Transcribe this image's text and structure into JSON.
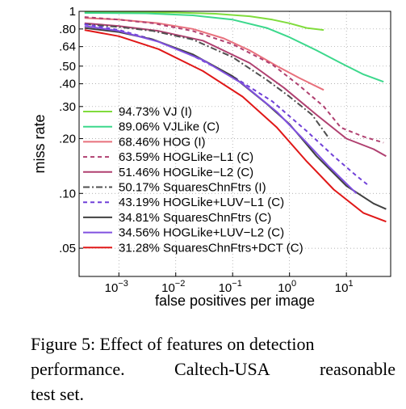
{
  "chart_data": {
    "type": "line",
    "xlabel": "false positives per image",
    "ylabel": "miss rate",
    "x_scale": "log",
    "y_scale": "log",
    "xlim": [
      0.0002,
      60
    ],
    "ylim": [
      0.035,
      1
    ],
    "x_ticks": [
      {
        "value": 0.001,
        "base": "10",
        "exp": "−3"
      },
      {
        "value": 0.01,
        "base": "10",
        "exp": "−2"
      },
      {
        "value": 0.1,
        "base": "10",
        "exp": "−1"
      },
      {
        "value": 1,
        "base": "10",
        "exp": "0"
      },
      {
        "value": 10,
        "base": "10",
        "exp": "1"
      }
    ],
    "y_ticks": [
      {
        "value": 1,
        "label": "1"
      },
      {
        "value": 0.8,
        "label": ".80"
      },
      {
        "value": 0.64,
        "label": ".64"
      },
      {
        "value": 0.5,
        "label": ".50"
      },
      {
        "value": 0.4,
        "label": ".40"
      },
      {
        "value": 0.3,
        "label": ".30"
      },
      {
        "value": 0.2,
        "label": ".20"
      },
      {
        "value": 0.1,
        "label": ".10"
      },
      {
        "value": 0.05,
        "label": ".05"
      }
    ],
    "grid": true,
    "legend_position": "bottom-left",
    "series": [
      {
        "name": "94.73% VJ (I)",
        "color": "#80dc3c",
        "dash": "solid",
        "points": [
          [
            0.00025,
            0.99
          ],
          [
            0.001,
            0.99
          ],
          [
            0.01,
            0.985
          ],
          [
            0.05,
            0.97
          ],
          [
            0.2,
            0.94
          ],
          [
            0.5,
            0.9
          ],
          [
            1,
            0.86
          ],
          [
            2,
            0.81
          ],
          [
            4,
            0.79
          ]
        ]
      },
      {
        "name": "89.06% VJLike (C)",
        "color": "#3cd88c",
        "dash": "solid",
        "points": [
          [
            0.00025,
            0.98
          ],
          [
            0.003,
            0.975
          ],
          [
            0.02,
            0.95
          ],
          [
            0.1,
            0.9
          ],
          [
            0.4,
            0.81
          ],
          [
            1,
            0.72
          ],
          [
            3,
            0.61
          ],
          [
            8,
            0.52
          ],
          [
            20,
            0.45
          ],
          [
            45,
            0.41
          ]
        ]
      },
      {
        "name": "68.46% HOG (I)",
        "color": "#e8707c",
        "dash": "solid",
        "points": [
          [
            0.00025,
            0.92
          ],
          [
            0.001,
            0.9
          ],
          [
            0.005,
            0.86
          ],
          [
            0.02,
            0.8
          ],
          [
            0.07,
            0.71
          ],
          [
            0.2,
            0.61
          ],
          [
            0.6,
            0.5
          ],
          [
            1.5,
            0.43
          ],
          [
            4,
            0.37
          ]
        ]
      },
      {
        "name": "63.59% HOGLike−L1 (C)",
        "color": "#b04070",
        "dash": "dash",
        "points": [
          [
            0.00025,
            0.93
          ],
          [
            0.001,
            0.9
          ],
          [
            0.004,
            0.86
          ],
          [
            0.02,
            0.78
          ],
          [
            0.1,
            0.66
          ],
          [
            0.5,
            0.51
          ],
          [
            1.5,
            0.39
          ],
          [
            4,
            0.3
          ],
          [
            8,
            0.23
          ],
          [
            20,
            0.205
          ],
          [
            45,
            0.19
          ]
        ]
      },
      {
        "name": "51.46% HOGLike−L2 (C)",
        "color": "#b04070",
        "dash": "solid",
        "points": [
          [
            0.00025,
            0.86
          ],
          [
            0.001,
            0.83
          ],
          [
            0.005,
            0.78
          ],
          [
            0.03,
            0.69
          ],
          [
            0.2,
            0.52
          ],
          [
            0.8,
            0.38
          ],
          [
            3,
            0.27
          ],
          [
            10,
            0.2
          ],
          [
            30,
            0.175
          ],
          [
            50,
            0.16
          ]
        ]
      },
      {
        "name": "50.17% SquaresChnFtrs (I)",
        "color": "#505050",
        "dash": "dashdot",
        "points": [
          [
            0.00025,
            0.85
          ],
          [
            0.001,
            0.82
          ],
          [
            0.004,
            0.78
          ],
          [
            0.02,
            0.7
          ],
          [
            0.1,
            0.56
          ],
          [
            0.4,
            0.42
          ],
          [
            1,
            0.34
          ],
          [
            2.5,
            0.27
          ],
          [
            5,
            0.2
          ]
        ]
      },
      {
        "name": "43.19% HOGLike+LUV−L1 (C)",
        "color": "#7040d8",
        "dash": "dash",
        "points": [
          [
            0.00025,
            0.85
          ],
          [
            0.001,
            0.79
          ],
          [
            0.004,
            0.7
          ],
          [
            0.02,
            0.57
          ],
          [
            0.1,
            0.44
          ],
          [
            0.5,
            0.32
          ],
          [
            2,
            0.22
          ],
          [
            6,
            0.16
          ],
          [
            15,
            0.125
          ],
          [
            25,
            0.11
          ]
        ]
      },
      {
        "name": "34.81% SquaresChnFtrs (C)",
        "color": "#404040",
        "dash": "solid",
        "points": [
          [
            0.00025,
            0.81
          ],
          [
            0.001,
            0.77
          ],
          [
            0.004,
            0.7
          ],
          [
            0.02,
            0.58
          ],
          [
            0.1,
            0.44
          ],
          [
            0.4,
            0.31
          ],
          [
            1,
            0.24
          ],
          [
            3,
            0.16
          ],
          [
            10,
            0.11
          ],
          [
            30,
            0.088
          ],
          [
            50,
            0.082
          ]
        ]
      },
      {
        "name": "34.56% HOGLike+LUV−L2 (C)",
        "color": "#8050e0",
        "dash": "solid",
        "points": [
          [
            0.00025,
            0.83
          ],
          [
            0.001,
            0.78
          ],
          [
            0.005,
            0.68
          ],
          [
            0.03,
            0.54
          ],
          [
            0.15,
            0.4
          ],
          [
            0.6,
            0.28
          ],
          [
            2,
            0.19
          ],
          [
            5,
            0.14
          ],
          [
            15,
            0.1
          ]
        ]
      },
      {
        "name": "31.28% SquaresChnFtrs+DCT (C)",
        "color": "#e01818",
        "dash": "solid",
        "points": [
          [
            0.00025,
            0.79
          ],
          [
            0.001,
            0.73
          ],
          [
            0.005,
            0.62
          ],
          [
            0.03,
            0.47
          ],
          [
            0.15,
            0.34
          ],
          [
            0.6,
            0.23
          ],
          [
            2,
            0.15
          ],
          [
            6,
            0.105
          ],
          [
            20,
            0.078
          ],
          [
            50,
            0.07
          ]
        ]
      }
    ]
  },
  "caption": {
    "line1": "Figure 5: Effect of features on detection",
    "line2_a": "performance.",
    "line2_b": "Caltech-USA",
    "line2_c": "reasonable",
    "line3": "test set."
  }
}
